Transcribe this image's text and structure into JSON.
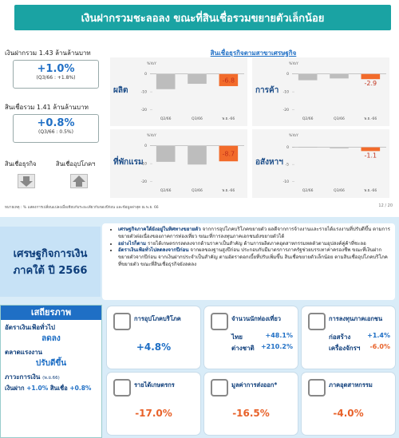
{
  "header": {
    "title": "เงินฝากรวมชะลอลง ขณะที่สินเชื่อรวมขยายตัวเล็กน้อย"
  },
  "deposits": {
    "label": "เงินฝากรวม 1.43 ล้านล้านบาท",
    "value": "+1.0%",
    "note": "(Q3/66 : +1.8%)"
  },
  "loans": {
    "label": "สินเชื่อรวม 1.41 ล้านล้านบาท",
    "value": "+0.8%",
    "note": "(Q3/66 : 0.5%)"
  },
  "loan_types": [
    "สินเชื่อธุรกิจ",
    "สินเชื่ออุปโภคฯ"
  ],
  "sector_title": "สินเชื่อธุรกิจตามสาขาเศรษฐกิจ",
  "chart_data": [
    {
      "type": "bar",
      "title": "ผลิต",
      "y_label": "%YoY",
      "categories": [
        "Q2/66",
        "Q3/66",
        "พ.ย.-66"
      ],
      "values": [
        -8.5,
        -5.5,
        -6.8
      ],
      "colors": [
        "#bdbdbd",
        "#bdbdbd",
        "#f26b2b"
      ],
      "ylim": [
        -22,
        3
      ],
      "yticks": [
        0,
        -10,
        -20
      ]
    },
    {
      "type": "bar",
      "title": "การค้า",
      "y_label": "%YoY",
      "categories": [
        "Q2/66",
        "Q3/66",
        "พ.ย.-66"
      ],
      "values": [
        -3.5,
        -2.5,
        -2.9
      ],
      "colors": [
        "#bdbdbd",
        "#bdbdbd",
        "#f26b2b"
      ],
      "ylim": [
        -22,
        3
      ],
      "yticks": [
        0,
        -10,
        -20
      ]
    },
    {
      "type": "bar",
      "title": "ที่พักแรม",
      "y_label": "%YoY",
      "categories": [
        "Q2/66",
        "Q3/66",
        "พ.ย.-66"
      ],
      "values": [
        -9,
        -10.5,
        -8.7
      ],
      "colors": [
        "#bdbdbd",
        "#bdbdbd",
        "#f26b2b"
      ],
      "ylim": [
        -22,
        3
      ],
      "yticks": [
        0,
        -10,
        -20
      ]
    },
    {
      "type": "bar",
      "title": "อสังหาฯ",
      "y_label": "%YoY",
      "categories": [
        "Q2/66",
        "Q3/66",
        "พ.ย.-66"
      ],
      "values": [
        0.1,
        -0.3,
        -1.1
      ],
      "colors": [
        "#bdbdbd",
        "#bdbdbd",
        "#f26b2b"
      ],
      "ylim": [
        -11,
        2
      ],
      "yticks": [
        0,
        -5,
        -10
      ]
    }
  ],
  "footnote": "หมายเหตุ : % แสดงการเปลี่ยนแปลงเมื่อเทียบกับระยะเดียวกันของปีก่อน และข้อมูลล่าสุด ณ พ.ย. 66",
  "page": "12 / 20",
  "summary": {
    "title": [
      "เศรษฐกิจการเงิน",
      "ภาคใต้ ปี 2566"
    ],
    "bullets": [
      {
        "bold": "เศรษฐกิจภาคใต้ยังอยู่ในทิศทางขยายตัว",
        "text": "จากการอุปโภคบริโภคขยายตัว ผลดีจากการจ้างงานและรายได้แรงงานที่ปรับดีขึ้น ตามการขยายตัวต่อเนื่องของภาคการท่องเที่ยว ขณะที่การลงทุนภาคเอกชนยังขยายตัวได้"
      },
      {
        "bold": "อย่างไรก็ตาม",
        "text": "รายได้เกษตรกรลดลงจากด้านราคาเป็นสำคัญ ด้านการผลิตภาคอุตสาหกรรมหดตัวตามอุปสงค์คู่ค้าที่ชะลอ"
      },
      {
        "bold": "อัตราเงินเฟ้อทั่วไปลดลงจากปีก่อน",
        "text": "จากผลของฐานสูงปีก่อน ประกอบกับมีมาตรการภาครัฐช่วยบรรเทาค่าครองชีพ ขณะที่เงินฝากขยายตัวจากปีก่อน จากเงินฝากประจำเป็นสำคัญ ตามอัตราดอกเบี้ยที่ปรับเพิ่มขึ้น สินเชื่อขยายตัวเล็กน้อย ตามสินเชื่ออุปโภคบริโภคที่ขยายตัว ขณะที่สินเชื่อธุรกิจยังลดลง"
      }
    ]
  },
  "stability": {
    "title": "เสถียรภาพ",
    "items": [
      {
        "label": "อัตราเงินเฟ้อทั่วไป",
        "value": "ลดลง"
      },
      {
        "label": "ตลาดแรงงาน",
        "value": "ปรับดีขึ้น"
      }
    ],
    "financial": {
      "label": "ภาวะการเงิน",
      "note": "(พ.ย.66)",
      "rows": [
        {
          "name": "เงินฝาก",
          "value": "+1.0%"
        },
        {
          "name": "สินเชื่อ",
          "value": "+0.8%"
        }
      ]
    }
  },
  "cards": [
    {
      "label": "การอุปโภคบริโภค",
      "value": "+4.8%"
    },
    {
      "label": "จำนวนนักท่องเที่ยว",
      "rows": [
        {
          "name": "ไทย",
          "value": "+48.1%"
        },
        {
          "name": "ต่างชาติ",
          "value": "+210.2%"
        }
      ]
    },
    {
      "label": "การลงทุนภาคเอกชน",
      "rows": [
        {
          "name": "ก่อสร้าง",
          "value": "+1.4%"
        },
        {
          "name": "เครื่องจักรฯ",
          "value": "-6.0%"
        }
      ]
    },
    {
      "label": "รายได้เกษตรกร",
      "value": "-17.0%"
    },
    {
      "label": "มูลค่าการส่งออก*",
      "value": "-16.5%"
    },
    {
      "label": "ภาคอุตสาหกรรม",
      "value": "-4.0%"
    }
  ]
}
